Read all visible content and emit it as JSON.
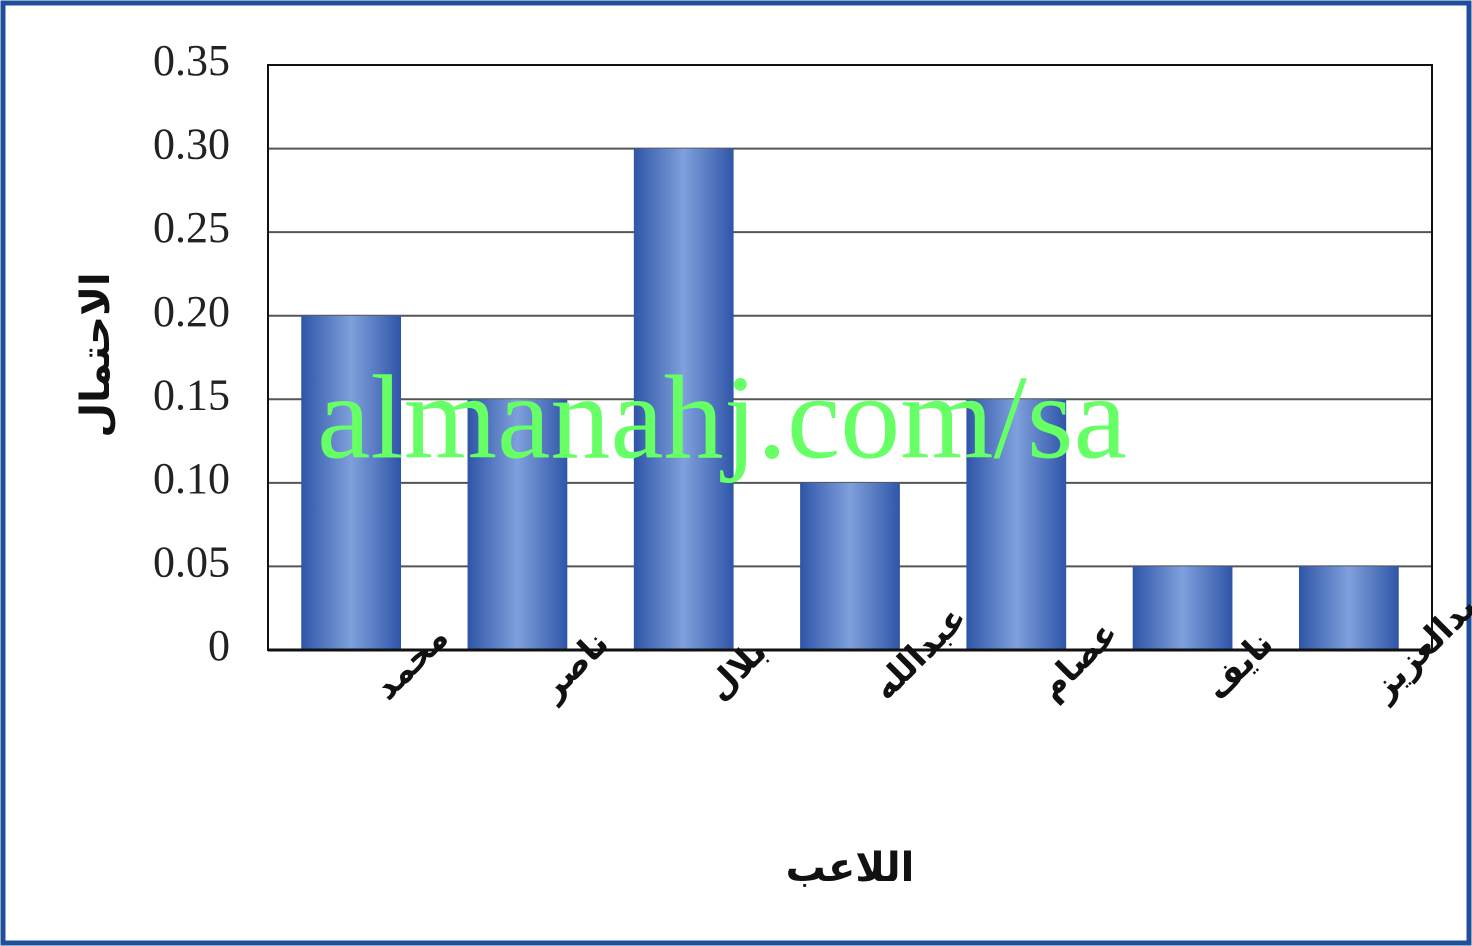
{
  "chart_data": {
    "type": "bar",
    "categories": [
      "محمد",
      "ناصر",
      "بلال",
      "عبدالله",
      "عصام",
      "نايف",
      "عبدالعزيز"
    ],
    "values": [
      0.2,
      0.15,
      0.3,
      0.1,
      0.15,
      0.05,
      0.05
    ],
    "color": "#2f55a8",
    "xlabel": "اللاعب",
    "ylabel": "الاحتمال",
    "watermark": "almanahj.com/sa",
    "ylim": [
      0,
      0.35
    ],
    "yticks": [
      0,
      0.05,
      {
        "value": 0.1,
        "label": "0.10"
      },
      0.15,
      {
        "value": 0.2,
        "label": "0.20"
      },
      0.25,
      {
        "value": 0.3,
        "label": "0.30"
      },
      0.35
    ],
    "grid": true
  }
}
